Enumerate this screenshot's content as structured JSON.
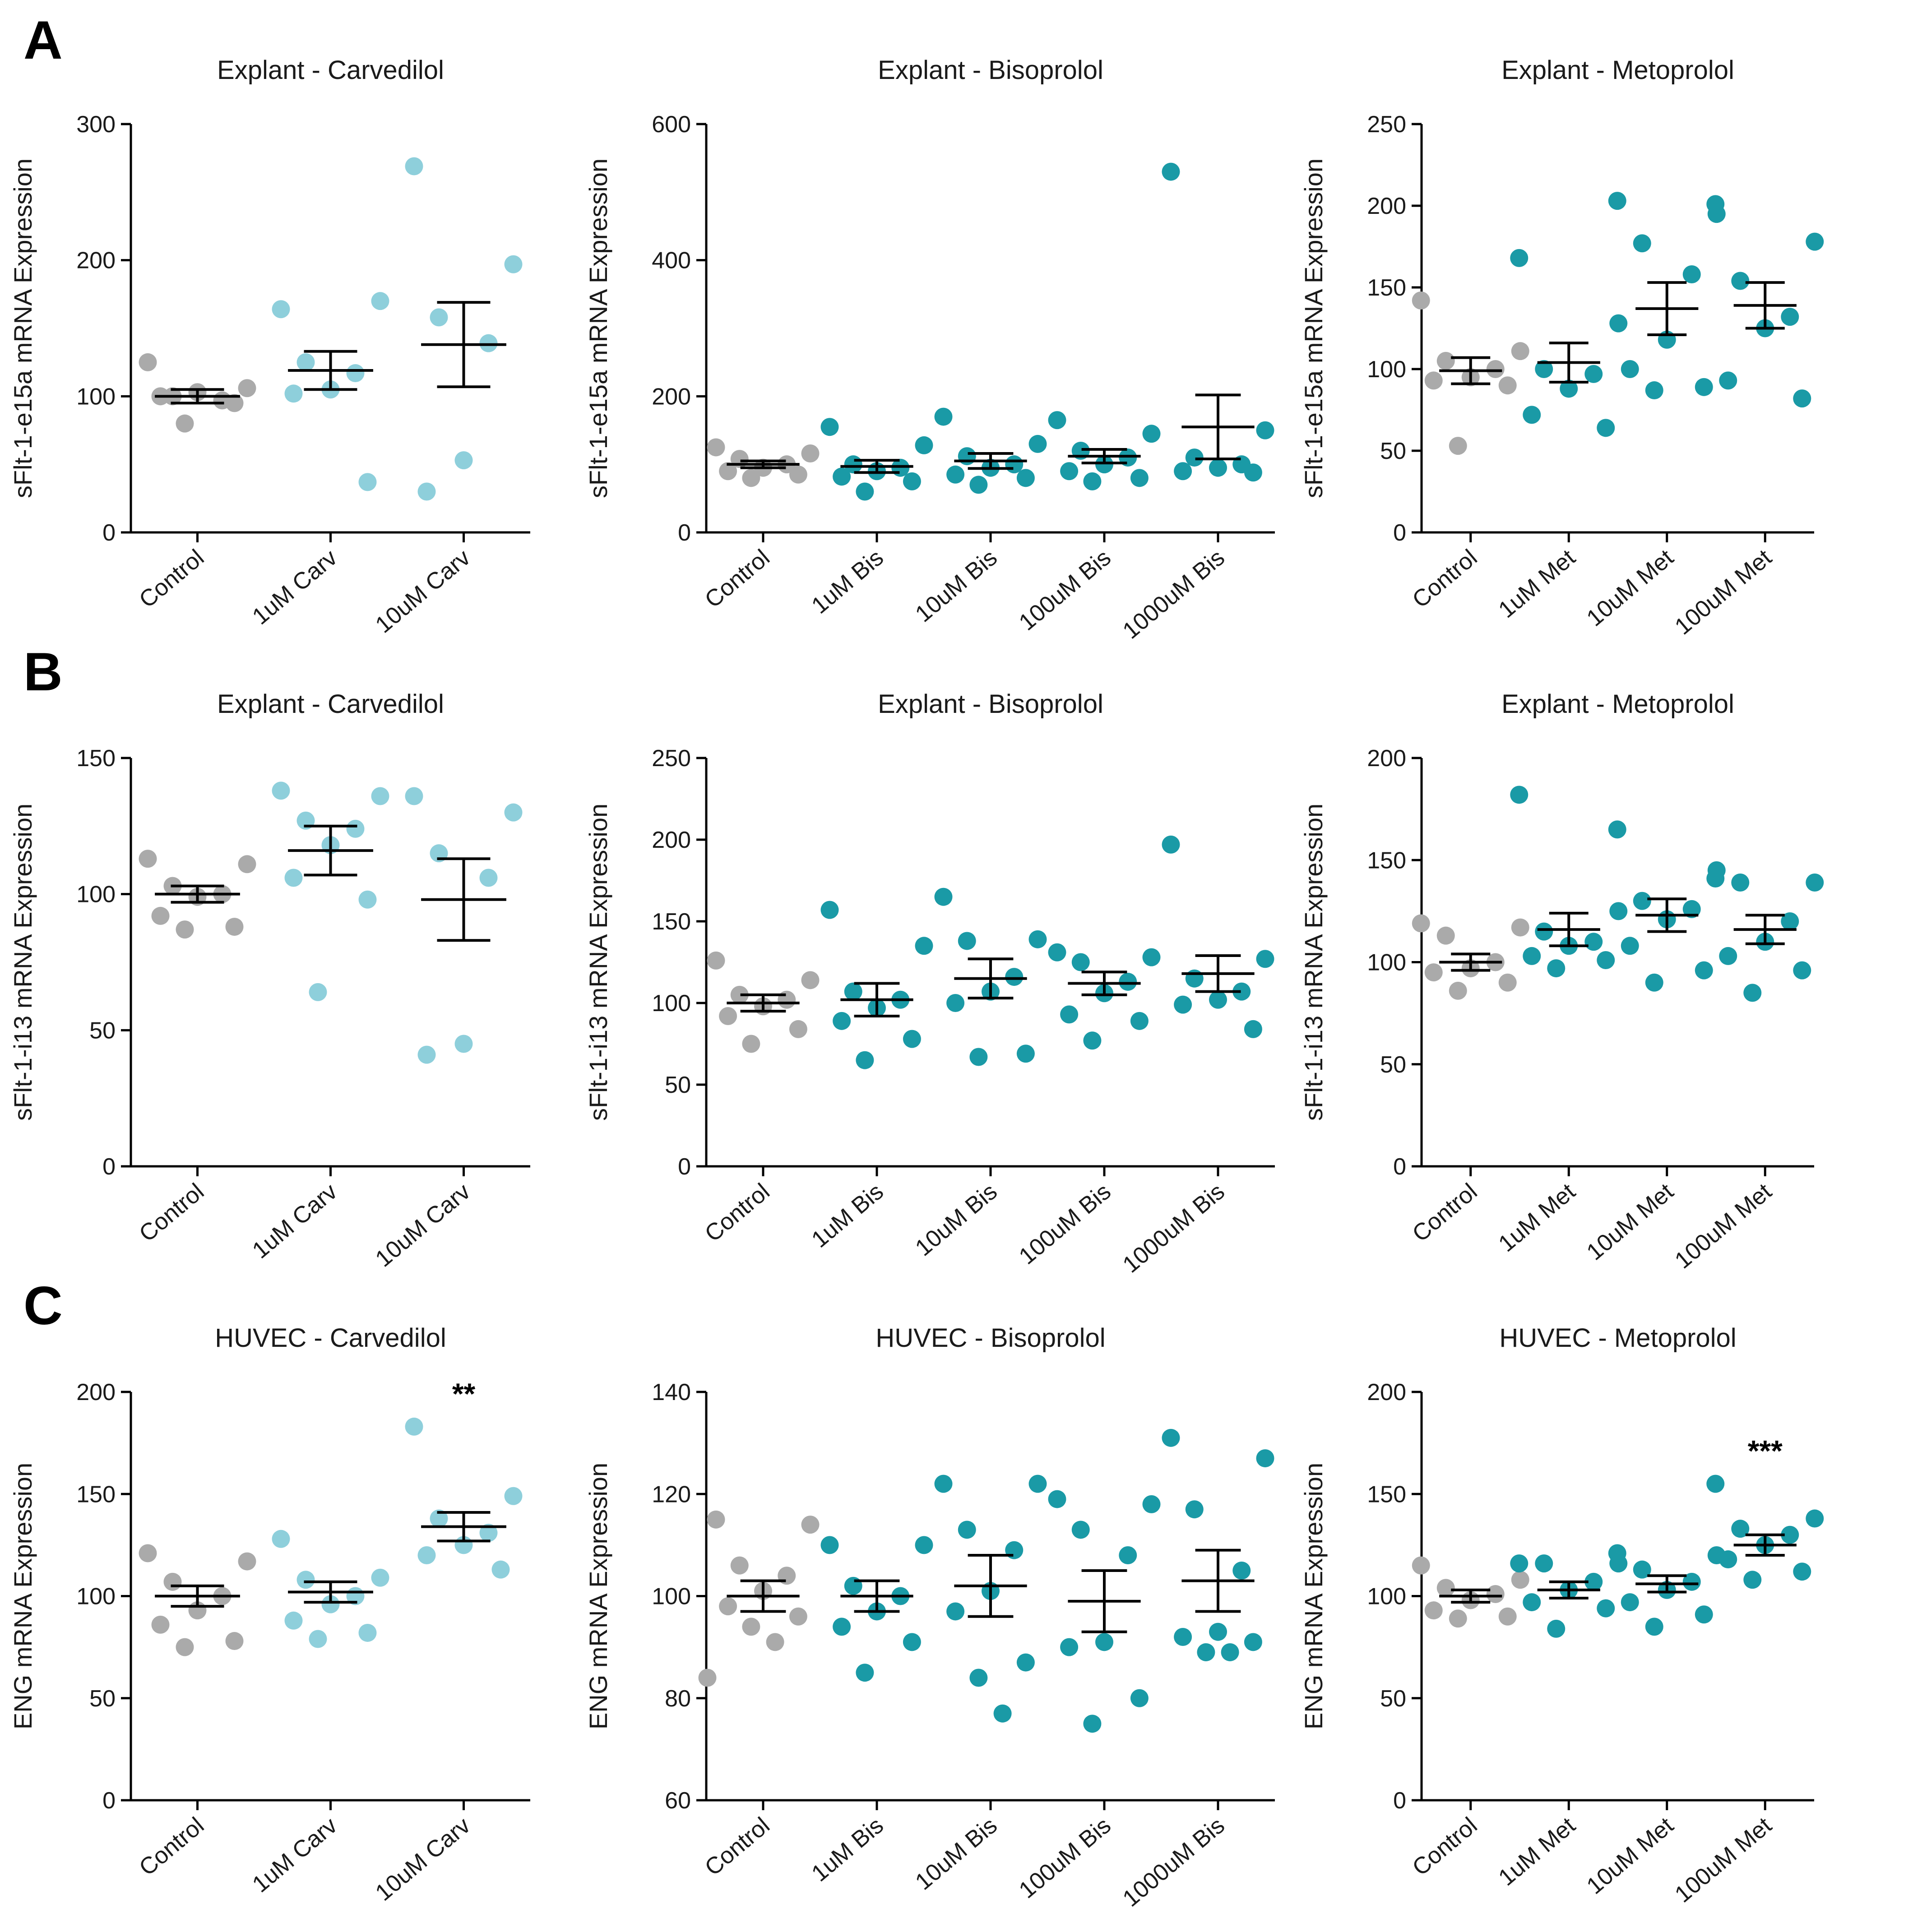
{
  "panels": [
    "A",
    "B",
    "C"
  ],
  "colors": {
    "control": "#aaaaaa",
    "carvedilol": "#8ecfdb",
    "teal": "#1a9aa6",
    "axis": "#000000",
    "mean_bar": "#000000"
  },
  "chart_data": [
    {
      "type": "scatter",
      "panel": "A",
      "title": "Explant - Carvedilol",
      "ylabel": "sFlt-1-e15a mRNA Expression",
      "ylim": [
        0,
        300
      ],
      "yticks": [
        0,
        100,
        200,
        300
      ],
      "categories": [
        "Control",
        "1uM Carv",
        "10uM Carv"
      ],
      "point_colors": [
        "control",
        "carvedilol",
        "carvedilol"
      ],
      "points": [
        [
          125,
          106,
          100,
          97,
          103,
          100,
          95,
          80
        ],
        [
          164,
          170,
          125,
          117,
          105,
          102,
          37
        ],
        [
          269,
          197,
          158,
          139,
          53,
          30
        ]
      ],
      "means": [
        100,
        119,
        138
      ],
      "sem": [
        5,
        14,
        31
      ],
      "significance": [
        "",
        "",
        ""
      ]
    },
    {
      "type": "scatter",
      "panel": "A",
      "title": "Explant - Bisoprolol",
      "ylabel": "sFlt-1-e15a mRNA Expression",
      "ylim": [
        0,
        600
      ],
      "yticks": [
        0,
        200,
        400,
        600
      ],
      "categories": [
        "Control",
        "1uM Bis",
        "10uM Bis",
        "100uM Bis",
        "1000uM Bis"
      ],
      "point_colors": [
        "control",
        "teal",
        "teal",
        "teal",
        "teal"
      ],
      "points": [
        [
          125,
          116,
          108,
          100,
          95,
          90,
          85,
          80
        ],
        [
          155,
          128,
          100,
          95,
          90,
          82,
          75,
          60
        ],
        [
          170,
          130,
          112,
          100,
          95,
          85,
          80,
          70
        ],
        [
          165,
          145,
          120,
          110,
          100,
          90,
          80,
          75
        ],
        [
          530,
          150,
          110,
          100,
          95,
          90,
          88
        ]
      ],
      "means": [
        100,
        97,
        105,
        112,
        155
      ],
      "sem": [
        5,
        9,
        11,
        10,
        47
      ],
      "significance": [
        "",
        "",
        "",
        "",
        ""
      ]
    },
    {
      "type": "scatter",
      "panel": "A",
      "title": "Explant - Metoprolol",
      "ylabel": "sFlt-1-e15a mRNA Expression",
      "ylim": [
        0,
        250
      ],
      "yticks": [
        0,
        50,
        100,
        150,
        200,
        250
      ],
      "categories": [
        "Control",
        "1uM Met",
        "10uM Met",
        "100uM Met"
      ],
      "point_colors": [
        "control",
        "teal",
        "teal",
        "teal"
      ],
      "points": [
        [
          142,
          111,
          105,
          100,
          95,
          93,
          90,
          53
        ],
        [
          168,
          128,
          100,
          97,
          88,
          72,
          64
        ],
        [
          203,
          195,
          177,
          158,
          118,
          100,
          89,
          87
        ],
        [
          201,
          178,
          154,
          132,
          125,
          93,
          82
        ]
      ],
      "means": [
        99,
        104,
        137,
        139
      ],
      "sem": [
        8,
        12,
        16,
        14
      ],
      "significance": [
        "",
        "",
        "",
        ""
      ]
    },
    {
      "type": "scatter",
      "panel": "B",
      "title": "Explant - Carvedilol",
      "ylabel": "sFlt-1-i13 mRNA Expression",
      "ylim": [
        0,
        150
      ],
      "yticks": [
        0,
        50,
        100,
        150
      ],
      "categories": [
        "Control",
        "1uM Carv",
        "10uM Carv"
      ],
      "point_colors": [
        "control",
        "carvedilol",
        "carvedilol"
      ],
      "points": [
        [
          113,
          111,
          103,
          100,
          99,
          92,
          88,
          87
        ],
        [
          138,
          136,
          127,
          124,
          118,
          106,
          98,
          64
        ],
        [
          136,
          130,
          115,
          106,
          45,
          41
        ]
      ],
      "means": [
        100,
        116,
        98
      ],
      "sem": [
        3,
        9,
        15
      ],
      "significance": [
        "",
        "",
        ""
      ]
    },
    {
      "type": "scatter",
      "panel": "B",
      "title": "Explant - Bisoprolol",
      "ylabel": "sFlt-1-i13 mRNA Expression",
      "ylim": [
        0,
        250
      ],
      "yticks": [
        0,
        50,
        100,
        150,
        200,
        250
      ],
      "categories": [
        "Control",
        "1uM Bis",
        "10uM Bis",
        "100uM Bis",
        "1000uM Bis"
      ],
      "point_colors": [
        "control",
        "teal",
        "teal",
        "teal",
        "teal"
      ],
      "points": [
        [
          126,
          114,
          105,
          102,
          98,
          92,
          84,
          75
        ],
        [
          157,
          135,
          107,
          102,
          97,
          89,
          78,
          65
        ],
        [
          165,
          139,
          138,
          116,
          107,
          100,
          69,
          67
        ],
        [
          131,
          128,
          125,
          113,
          106,
          93,
          89,
          77
        ],
        [
          197,
          127,
          115,
          107,
          102,
          99,
          84
        ]
      ],
      "means": [
        100,
        102,
        115,
        112,
        118
      ],
      "sem": [
        5,
        10,
        12,
        7,
        11
      ],
      "significance": [
        "",
        "",
        "",
        "",
        ""
      ]
    },
    {
      "type": "scatter",
      "panel": "B",
      "title": "Explant - Metoprolol",
      "ylabel": "sFlt-1-i13 mRNA Expression",
      "ylim": [
        0,
        200
      ],
      "yticks": [
        0,
        50,
        100,
        150,
        200
      ],
      "categories": [
        "Control",
        "1uM Met",
        "10uM Met",
        "100uM Met"
      ],
      "point_colors": [
        "control",
        "teal",
        "teal",
        "teal"
      ],
      "points": [
        [
          119,
          117,
          113,
          100,
          97,
          95,
          90,
          86
        ],
        [
          182,
          125,
          115,
          110,
          108,
          103,
          101,
          97
        ],
        [
          165,
          145,
          130,
          126,
          121,
          108,
          96,
          90
        ],
        [
          141,
          139,
          139,
          120,
          110,
          103,
          96,
          85
        ]
      ],
      "means": [
        100,
        116,
        123,
        116
      ],
      "sem": [
        4,
        8,
        8,
        7
      ],
      "significance": [
        "",
        "",
        "",
        ""
      ]
    },
    {
      "type": "scatter",
      "panel": "C",
      "title": "HUVEC - Carvedilol",
      "ylabel": "ENG mRNA Expression",
      "ylim": [
        0,
        200
      ],
      "yticks": [
        0,
        50,
        100,
        150,
        200
      ],
      "categories": [
        "Control",
        "1uM Carv",
        "10uM Carv"
      ],
      "point_colors": [
        "control",
        "carvedilol",
        "carvedilol"
      ],
      "points": [
        [
          121,
          117,
          107,
          100,
          93,
          86,
          78,
          75
        ],
        [
          128,
          109,
          108,
          100,
          96,
          88,
          82,
          79
        ],
        [
          183,
          149,
          138,
          131,
          125,
          120,
          113
        ]
      ],
      "means": [
        100,
        102,
        134
      ],
      "sem": [
        5,
        5,
        7
      ],
      "significance": [
        "",
        "",
        "**"
      ]
    },
    {
      "type": "scatter",
      "panel": "C",
      "title": "HUVEC - Bisoprolol",
      "ylabel": "ENG mRNA Expression",
      "ylim": [
        60,
        140
      ],
      "yticks": [
        60,
        80,
        100,
        120,
        140
      ],
      "categories": [
        "Control",
        "1uM Bis",
        "10uM Bis",
        "100uM Bis",
        "1000uM Bis"
      ],
      "point_colors": [
        "control",
        "teal",
        "teal",
        "teal",
        "teal"
      ],
      "points": [
        [
          115,
          114,
          106,
          104,
          101,
          98,
          96,
          94,
          91,
          84
        ],
        [
          110,
          110,
          102,
          100,
          97,
          94,
          91,
          85
        ],
        [
          122,
          122,
          113,
          109,
          101,
          97,
          87,
          84,
          77
        ],
        [
          119,
          118,
          113,
          108,
          91,
          90,
          80,
          75
        ],
        [
          131,
          127,
          117,
          105,
          93,
          92,
          91,
          89,
          89
        ]
      ],
      "means": [
        100,
        100,
        102,
        99,
        103
      ],
      "sem": [
        3,
        3,
        6,
        6,
        6
      ],
      "significance": [
        "",
        "",
        "",
        "",
        ""
      ]
    },
    {
      "type": "scatter",
      "panel": "C",
      "title": "HUVEC - Metoprolol",
      "ylabel": "ENG mRNA Expression",
      "ylim": [
        0,
        200
      ],
      "yticks": [
        0,
        50,
        100,
        150,
        200
      ],
      "categories": [
        "Control",
        "1uM Met",
        "10uM Met",
        "100uM Met"
      ],
      "point_colors": [
        "control",
        "teal",
        "teal",
        "teal"
      ],
      "points": [
        [
          115,
          108,
          104,
          101,
          98,
          93,
          90,
          89
        ],
        [
          116,
          116,
          116,
          107,
          103,
          97,
          94,
          84
        ],
        [
          121,
          120,
          113,
          107,
          103,
          97,
          91,
          85
        ],
        [
          155,
          138,
          133,
          130,
          125,
          118,
          112,
          108
        ]
      ],
      "means": [
        100,
        103,
        106,
        125
      ],
      "sem": [
        3,
        4,
        4,
        5
      ],
      "significance": [
        "",
        "",
        "",
        "***"
      ]
    }
  ]
}
